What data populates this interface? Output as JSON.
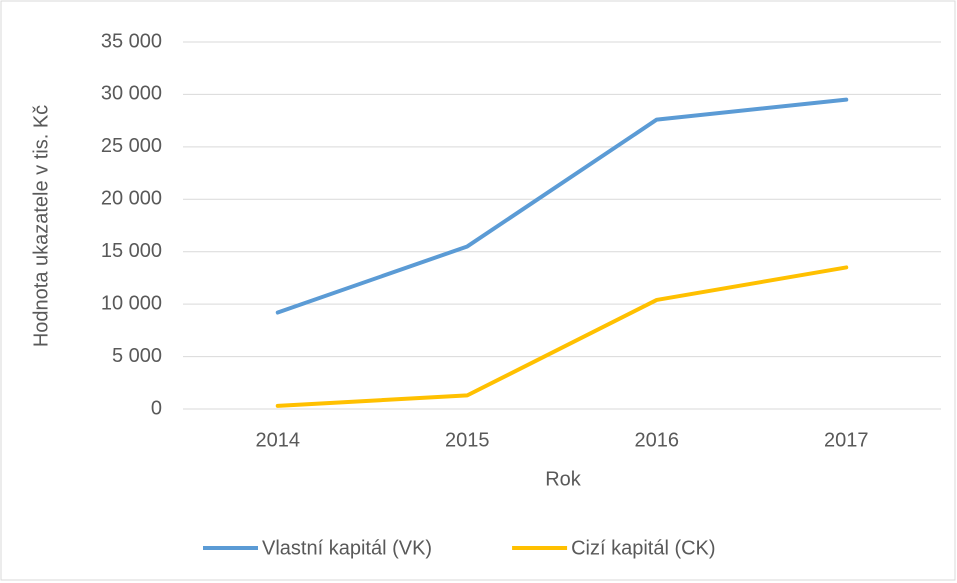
{
  "chart_data": {
    "type": "line",
    "x_label": "Rok",
    "y_label": "Hodnota ukazatele v tis. Kč",
    "categories": [
      "2014",
      "2015",
      "2016",
      "2017"
    ],
    "series": [
      {
        "name": "Vlastní kapitál (VK)",
        "color": "#5b9bd5",
        "values": [
          9200,
          15500,
          27600,
          29500
        ]
      },
      {
        "name": "Cizí kapitál (CK)",
        "color": "#ffc000",
        "values": [
          300,
          1300,
          10400,
          13500
        ]
      }
    ],
    "ylim": [
      0,
      35000
    ],
    "yticks": [
      0,
      {
        "value": 5000,
        "label": "5 000"
      },
      {
        "value": 10000,
        "label": "10 000"
      },
      {
        "value": 15000,
        "label": "15 000"
      },
      {
        "value": 20000,
        "label": "20 000"
      },
      {
        "value": 25000,
        "label": "25 000"
      },
      {
        "value": 30000,
        "label": "30 000"
      },
      {
        "value": 35000,
        "label": "35 000"
      }
    ],
    "grid": true,
    "legend": "bottom"
  }
}
